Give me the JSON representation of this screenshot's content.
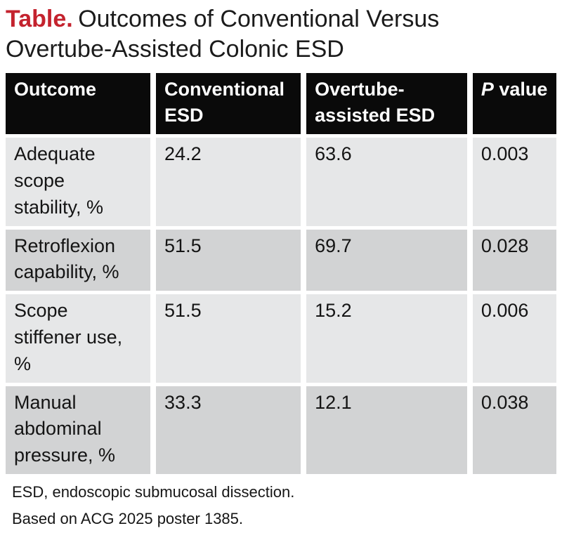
{
  "title": {
    "label": "Table.",
    "text": "Outcomes of Conventional Versus\nOvertube-Assisted Colonic ESD"
  },
  "colors": {
    "accent_red": "#c4232e",
    "header_bg": "#0a0a0a",
    "header_text": "#ffffff",
    "row_light": "#e6e7e8",
    "row_dark": "#d2d3d4",
    "page_bg": "#ffffff",
    "body_text": "#141414"
  },
  "table": {
    "header": {
      "outcome": "Outcome",
      "conventional": "Conventional\nESD",
      "overtube": "Overtube-\nassisted ESD",
      "p_value": {
        "italic": "P",
        "rest": " value"
      }
    },
    "rows": [
      {
        "outcome": "Adequate\nscope\nstability, %",
        "conventional": "24.2",
        "overtube": "63.6",
        "p": "0.003"
      },
      {
        "outcome": "Retroflexion\ncapability, %",
        "conventional": "51.5",
        "overtube": "69.7",
        "p": "0.028"
      },
      {
        "outcome": "Scope\nstiffener use,\n%",
        "conventional": "51.5",
        "overtube": "15.2",
        "p": "0.006"
      },
      {
        "outcome": "Manual\nabdominal\npressure, %",
        "conventional": "33.3",
        "overtube": "12.1",
        "p": "0.038"
      }
    ]
  },
  "footnotes": [
    "ESD, endoscopic submucosal dissection.",
    "Based on ACG 2025 poster 1385."
  ],
  "chart_data": {
    "type": "table",
    "title": "Table. Outcomes of Conventional Versus Overtube-Assisted Colonic ESD",
    "columns": [
      "Outcome",
      "Conventional ESD",
      "Overtube-assisted ESD",
      "P value"
    ],
    "rows": [
      [
        "Adequate scope stability, %",
        24.2,
        63.6,
        0.003
      ],
      [
        "Retroflexion capability, %",
        51.5,
        69.7,
        0.028
      ],
      [
        "Scope stiffener use, %",
        51.5,
        15.2,
        0.006
      ],
      [
        "Manual abdominal pressure, %",
        33.3,
        12.1,
        0.038
      ]
    ],
    "footnotes": [
      "ESD, endoscopic submucosal dissection.",
      "Based on ACG 2025 poster 1385."
    ],
    "layout": {
      "header_style": "black-bg-white-bold-text",
      "row_striping": [
        "light-gray",
        "dark-gray"
      ],
      "grid": "white-gutters"
    }
  }
}
